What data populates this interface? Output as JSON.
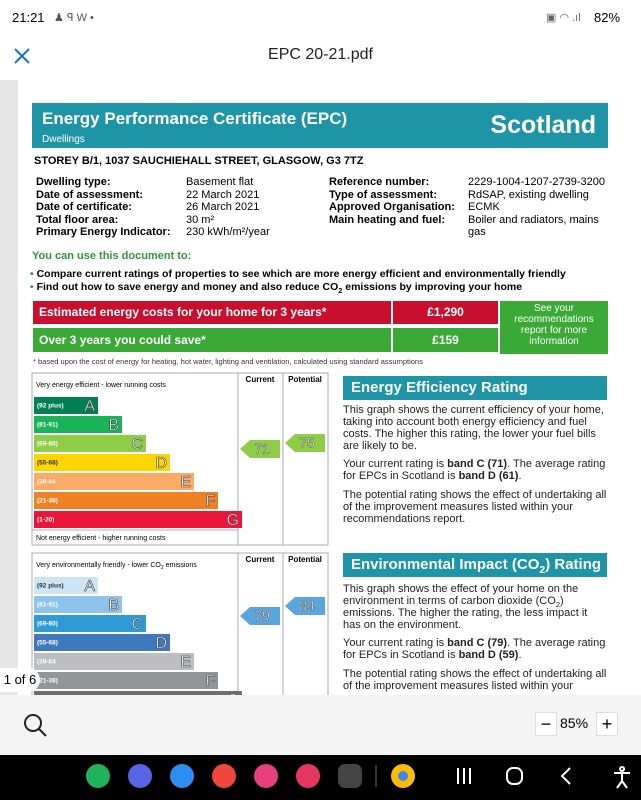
{
  "status_bar": {
    "time": "21:21",
    "battery": "82%"
  },
  "toolbar": {
    "title": "EPC 20-21.pdf"
  },
  "certificate": {
    "title": "Energy Performance Certificate (EPC)",
    "subtitle": "Dwellings",
    "region": "Scotland",
    "address": "STOREY B/1, 1037 SAUCHIEHALL STREET, GLASGOW, G3 7TZ",
    "details_left": [
      [
        "Dwelling type:",
        "Basement flat"
      ],
      [
        "Date of assessment:",
        "22 March 2021"
      ],
      [
        "Date of certificate:",
        "26 March 2021"
      ],
      [
        "Total floor area:",
        "30 m²"
      ],
      [
        "Primary Energy Indicator:",
        "230 kWh/m²/year"
      ]
    ],
    "details_right": [
      [
        "Reference number:",
        "2229-1004-1207-2739-3200"
      ],
      [
        "Type of assessment:",
        "RdSAP, existing dwelling"
      ],
      [
        "Approved Organisation:",
        "ECMK"
      ],
      [
        "Main heating and fuel:",
        "Boiler and radiators, mains gas"
      ]
    ],
    "uses_heading": "You can use this document to:",
    "uses": [
      [
        "Compare current ratings of properties to see which are more energy efficient and environmentally friendly"
      ],
      [
        "Find out how to save energy and money and also reduce CO",
        "2",
        " emissions by improving your home"
      ]
    ],
    "costs": {
      "estimated_label": "Estimated energy costs for your home for 3 years*",
      "estimated_value": "£1,290",
      "saving_label": "Over 3 years you could save*",
      "saving_value": "£159",
      "note": "See your recommendations report for more information"
    },
    "footnote": "* based upon the cost of energy for heating, hot water, lighting and ventilation, calculated using standard assumptions"
  },
  "energy_efficiency": {
    "header_current": "Current",
    "header_potential": "Potential",
    "top_label": [
      "Very energy efficient - lower running costs"
    ],
    "bottom_label": "Not energy efficient - higher running costs",
    "bands": [
      {
        "range": "(92 plus)",
        "letter": "A",
        "color": "#008054"
      },
      {
        "range": "(81-91)",
        "letter": "B",
        "color": "#19b459"
      },
      {
        "range": "(69-80)",
        "letter": "C",
        "color": "#8dce46"
      },
      {
        "range": "(55-68)",
        "letter": "D",
        "color": "#ffd500"
      },
      {
        "range": "(39-54",
        "letter": "E",
        "color": "#fcaa65"
      },
      {
        "range": "(21-38)",
        "letter": "F",
        "color": "#ef8023"
      },
      {
        "range": "(1-20)",
        "letter": "G",
        "color": "#e9153b"
      }
    ],
    "current": 71,
    "potential": 75,
    "arrow_color": "#8dce46",
    "heading": [
      "Energy Efficiency Rating"
    ],
    "paragraphs": [
      [
        "This graph shows the current efficiency of your home, taking into account both energy efficiency and fuel costs. The higher this rating, the lower your fuel bills are likely to be."
      ],
      [
        "Your current rating is ",
        "band C (71)",
        ". The average rating for EPCs in Scotland is ",
        "band D (61)",
        "."
      ],
      [
        "The potential rating shows the effect of undertaking all of the improvement measures listed within your recommendations report."
      ]
    ]
  },
  "environmental": {
    "header_current": "Current",
    "header_potential": "Potential",
    "top_label": [
      "Very environmentally friendly - lower CO",
      "2",
      " emissions"
    ],
    "bands": [
      {
        "range": "(92 plus)",
        "letter": "A",
        "color": "#cde4f4"
      },
      {
        "range": "(81-91)",
        "letter": "B",
        "color": "#8ec3eb"
      },
      {
        "range": "(69-80)",
        "letter": "C",
        "color": "#2e9ad8"
      },
      {
        "range": "(55-68)",
        "letter": "D",
        "color": "#3e79bd"
      },
      {
        "range": "(39-54",
        "letter": "E",
        "color": "#bcbec0"
      },
      {
        "range": "(21-38)",
        "letter": "F",
        "color": "#939598"
      },
      {
        "range": null,
        "letter": "G",
        "color": "#6d6e71"
      }
    ],
    "current": 79,
    "potential": 84,
    "arrow_color": "#5aa6dc",
    "heading": [
      "Environmental Impact (CO",
      "2",
      ") Rating"
    ],
    "paragraphs": [
      [
        "This graph shows the effect of your home on the environment in terms of carbon dioxide (CO",
        "2",
        ") emissions. The higher the rating, the less impact it has on the environment."
      ],
      [
        "Your current rating is ",
        "band C (79)",
        ". The average rating for EPCs in Scotland is ",
        "band D (59)",
        "."
      ],
      [
        "The potential rating shows the effect of undertaking all of the improvement measures listed within your"
      ]
    ]
  },
  "viewer": {
    "page_indicator": "1 of 6",
    "zoom": "85%"
  }
}
